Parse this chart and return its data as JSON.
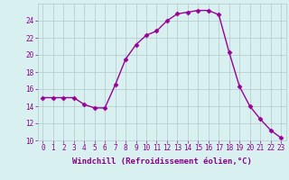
{
  "x": [
    0,
    1,
    2,
    3,
    4,
    5,
    6,
    7,
    8,
    9,
    10,
    11,
    12,
    13,
    14,
    15,
    16,
    17,
    18,
    19,
    20,
    21,
    22,
    23
  ],
  "y": [
    15.0,
    15.0,
    15.0,
    15.0,
    14.2,
    13.8,
    13.8,
    16.5,
    19.5,
    21.2,
    22.3,
    22.8,
    24.0,
    24.8,
    25.0,
    25.2,
    25.2,
    24.7,
    20.3,
    16.3,
    14.0,
    12.5,
    11.2,
    10.3
  ],
  "line_color": "#990099",
  "marker": "D",
  "marker_size": 2.5,
  "bg_color": "#d8f0f0",
  "grid_color": "#b0c8c8",
  "tick_color": "#880088",
  "label_color": "#880088",
  "xlabel": "Windchill (Refroidissement éolien,°C)",
  "ylim": [
    10,
    26
  ],
  "xlim": [
    -0.5,
    23.5
  ],
  "yticks": [
    10,
    12,
    14,
    16,
    18,
    20,
    22,
    24
  ],
  "xticks": [
    0,
    1,
    2,
    3,
    4,
    5,
    6,
    7,
    8,
    9,
    10,
    11,
    12,
    13,
    14,
    15,
    16,
    17,
    18,
    19,
    20,
    21,
    22,
    23
  ],
  "xtick_labels": [
    "0",
    "1",
    "2",
    "3",
    "4",
    "5",
    "6",
    "7",
    "8",
    "9",
    "10",
    "11",
    "12",
    "13",
    "14",
    "15",
    "16",
    "17",
    "18",
    "19",
    "20",
    "21",
    "22",
    "23"
  ],
  "xlabel_fontsize": 6.5,
  "tick_fontsize": 5.5,
  "linewidth": 1.0
}
